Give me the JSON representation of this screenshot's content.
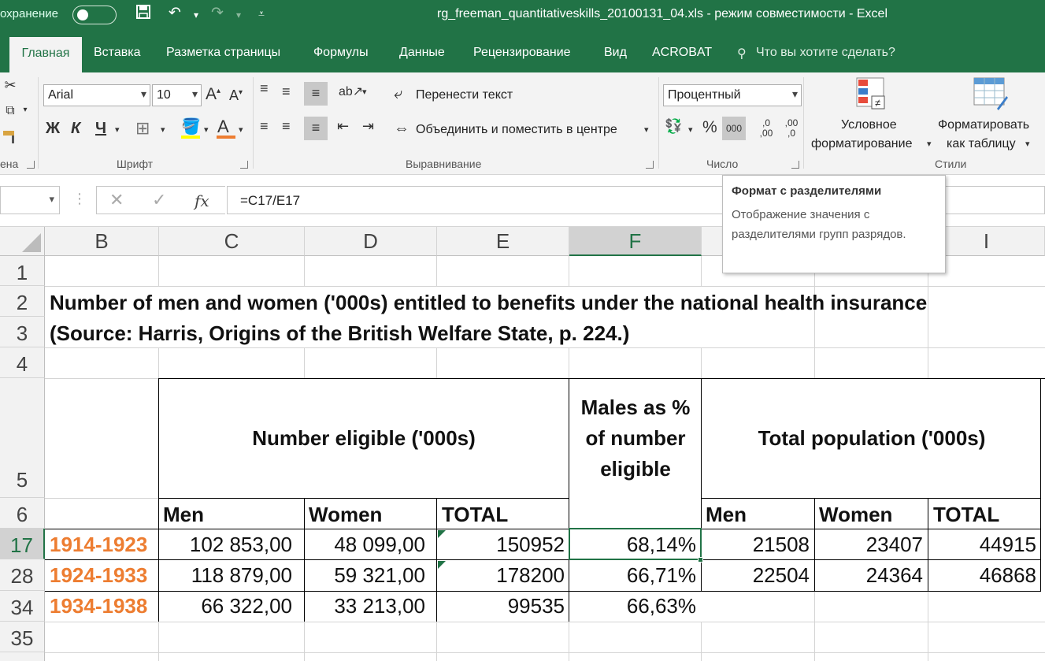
{
  "titlebar": {
    "autosave_label": "охранение",
    "save_icon": "save-icon",
    "undo_icon": "undo-icon",
    "redo_icon": "redo-icon",
    "title": "rg_freeman_quantitativeskills_20100131_04.xls  -  режим совместимости  -  Excel"
  },
  "tabs": [
    "Главная",
    "Вставка",
    "Разметка страницы",
    "Формулы",
    "Данные",
    "Рецензирование",
    "Вид",
    "ACROBAT"
  ],
  "tellme": "Что вы хотите сделать?",
  "ribbon": {
    "clipboard_label": "ена",
    "font": {
      "name": "Arial",
      "size": "10",
      "bold": "Ж",
      "italic": "К",
      "underline": "Ч",
      "group_label": "Шрифт"
    },
    "alignment": {
      "wrap": "Перенести текст",
      "merge": "Объединить и поместить в центре",
      "group_label": "Выравнивание"
    },
    "number": {
      "format": "Процентный",
      "percent": "%",
      "thousands": "000",
      "inc_dec": ",0 ,00",
      "dec_dec": ",00 ,0",
      "group_label": "Число"
    },
    "styles": {
      "conditional_1": "Условное",
      "conditional_2": "форматирование",
      "table_1": "Форматировать",
      "table_2": "как таблицу",
      "group_label": "Стили"
    }
  },
  "formula_bar": {
    "name_box": "",
    "fx": "fx",
    "formula": "=C17/E17"
  },
  "tooltip": {
    "title": "Формат с разделителями",
    "description": "Отображение значения с разделителями групп разрядов."
  },
  "columns": [
    "B",
    "C",
    "D",
    "E",
    "F",
    "I"
  ],
  "rows": [
    "1",
    "2",
    "3",
    "4",
    "5",
    "6",
    "17",
    "28",
    "34",
    "35"
  ],
  "sheet": {
    "title_row2": "Number of men and women ('000s) entitled to benefits under the national health insurance",
    "title_row3": "(Source: Harris, Origins of the British Welfare State, p. 224.)",
    "hdr_eligible": "Number eligible ('000s)",
    "hdr_males_pct": "Males as % of number eligible",
    "hdr_total_pop": "Total population ('000s)",
    "sub": {
      "men": "Men",
      "women": "Women",
      "total": "TOTAL"
    },
    "data": [
      {
        "period": "1914-1923",
        "men": "102 853,00",
        "women": "48 099,00",
        "total": "150952",
        "pct": "68,14%",
        "pop_men": "21508",
        "pop_women": "23407",
        "pop_total": "44915"
      },
      {
        "period": "1924-1933",
        "men": "118 879,00",
        "women": "59 321,00",
        "total": "178200",
        "pct": "66,71%",
        "pop_men": "22504",
        "pop_women": "24364",
        "pop_total": "46868"
      },
      {
        "period": "1934-1938",
        "men": "66 322,00",
        "women": "33 213,00",
        "total": "99535",
        "pct": "66,63%",
        "pop_men": "",
        "pop_women": "",
        "pop_total": ""
      }
    ]
  },
  "colors": {
    "excel_green": "#217346",
    "orange": "#ed7d31"
  }
}
